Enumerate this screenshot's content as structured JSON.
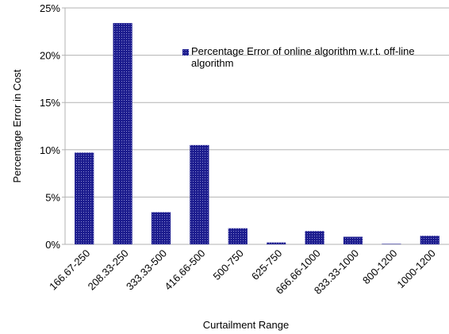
{
  "chart_data": {
    "type": "bar",
    "xlabel": "Curtailment Range",
    "ylabel": "Percentage Error in Cost",
    "categories": [
      "166.67-250",
      "208.33-250",
      "333.33-500",
      "416.66-500",
      "500-750",
      "625-750",
      "666.66-1000",
      "833.33-1000",
      "800-1200",
      "1000-1200"
    ],
    "series": [
      {
        "name": "Percentage Error of online algorithm w.r.t. off-line algorithm",
        "color": "#1c1c8e",
        "values": [
          9.7,
          23.4,
          3.4,
          10.5,
          1.7,
          0.2,
          1.4,
          0.8,
          0.05,
          0.9
        ]
      }
    ],
    "ylim": [
      0,
      25
    ],
    "yticks": [
      {
        "value": 0,
        "label": "0%"
      },
      {
        "value": 5,
        "label": "5%"
      },
      {
        "value": 10,
        "label": "10%"
      },
      {
        "value": 15,
        "label": "15%"
      },
      {
        "value": 20,
        "label": "20%"
      },
      {
        "value": 25,
        "label": "25%"
      }
    ],
    "grid": true
  }
}
